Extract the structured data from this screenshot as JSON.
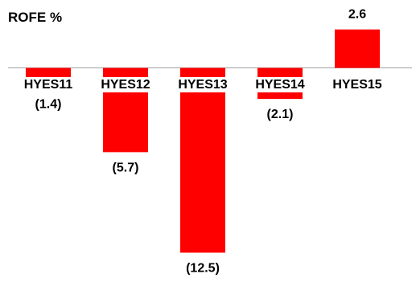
{
  "chart_data": {
    "type": "bar",
    "title": "ROFE %",
    "xlabel": "",
    "ylabel": "",
    "categories": [
      "HYES11",
      "HYES12",
      "HYES13",
      "HYES14",
      "HYES15"
    ],
    "values": [
      -1.4,
      -5.7,
      -12.5,
      -2.1,
      2.6
    ],
    "data_labels": [
      "(1.4)",
      "(5.7)",
      "(12.5)",
      "(2.1)",
      "2.6"
    ],
    "ylim": [
      -13,
      3
    ],
    "grid": false,
    "legend": "none",
    "bar_color": "#ff0000",
    "axis_color": "#a0a0a0"
  }
}
